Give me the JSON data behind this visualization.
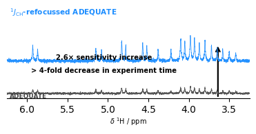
{
  "title": "$^1J_{\\mathrm{CH}}$-refocussed ADEQUATE",
  "label_gray": "ADEQUATE",
  "xlabel": "δ ¹H / ppm",
  "xlim": [
    6.25,
    3.25
  ],
  "xticks": [
    6.0,
    5.5,
    5.0,
    4.5,
    4.0,
    3.5
  ],
  "xtick_labels": [
    "6.0",
    "5.5",
    "5.0",
    "4.5",
    "4.0",
    "3.5"
  ],
  "text_line1": "2.6× sensitivity increase",
  "text_line2": "> 4-fold decrease in experiment time",
  "blue_color": "#1a8cff",
  "gray_color": "#444444",
  "background": "#ffffff"
}
